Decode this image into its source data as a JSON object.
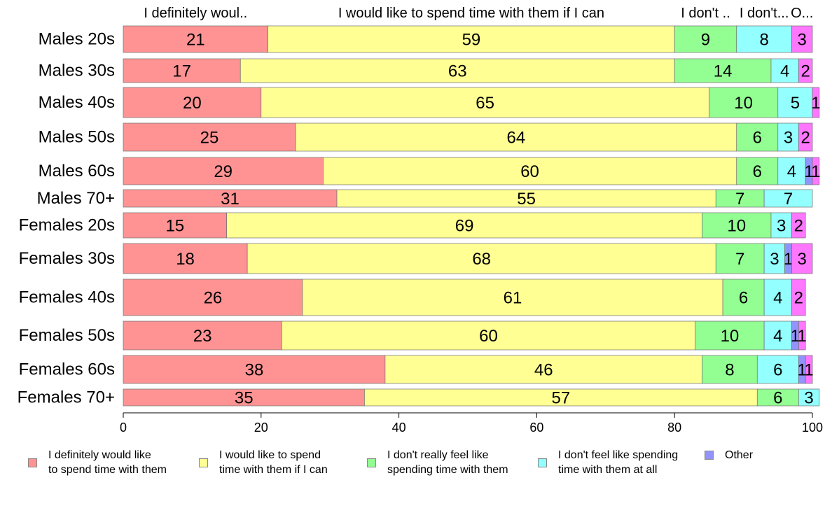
{
  "chart_data": {
    "type": "bar",
    "orientation": "horizontal",
    "stacked": true,
    "title": "",
    "xlabel": "",
    "ylabel": "",
    "xlim": [
      0,
      100
    ],
    "x_ticks": [
      "0",
      "20",
      "40",
      "60",
      "80",
      "100"
    ],
    "categories": [
      "Males 20s",
      "Males 30s",
      "Males 40s",
      "Males 50s",
      "Males 60s",
      "Males 70+",
      "Females 20s",
      "Females 30s",
      "Females 40s",
      "Females 50s",
      "Females 60s",
      "Females 70+"
    ],
    "top_labels": [
      "I definitely woul..",
      "I would like to spend time with them if I can",
      "I don't ..",
      "I don't...",
      "O..."
    ],
    "legend_position": "bottom",
    "series": [
      {
        "name": "I definitely would like\nto spend time with them",
        "color": "#ff9393",
        "values": [
          21,
          17,
          20,
          25,
          29,
          31,
          15,
          18,
          26,
          23,
          38,
          35
        ]
      },
      {
        "name": "I would like to spend\ntime with them if I can",
        "color": "#ffff93",
        "values": [
          59,
          63,
          65,
          64,
          60,
          55,
          69,
          68,
          61,
          60,
          46,
          57
        ]
      },
      {
        "name": "I don't really feel like\nspending time with them",
        "color": "#93ff93",
        "values": [
          9,
          14,
          10,
          6,
          6,
          7,
          10,
          7,
          6,
          10,
          8,
          6
        ]
      },
      {
        "name": "I don't feel like spending\ntime with them at all",
        "color": "#93ffff",
        "values": [
          8,
          4,
          5,
          3,
          4,
          7,
          3,
          3,
          4,
          4,
          6,
          3
        ]
      },
      {
        "name": "Other",
        "color": "#9393ff",
        "values": [
          0,
          0,
          0,
          0,
          1,
          0,
          0,
          1,
          0,
          1,
          1,
          0
        ]
      },
      {
        "name": "",
        "color": "#ff76ff",
        "values": [
          3,
          2,
          1,
          2,
          1,
          0,
          2,
          3,
          2,
          1,
          1,
          0
        ]
      }
    ]
  }
}
